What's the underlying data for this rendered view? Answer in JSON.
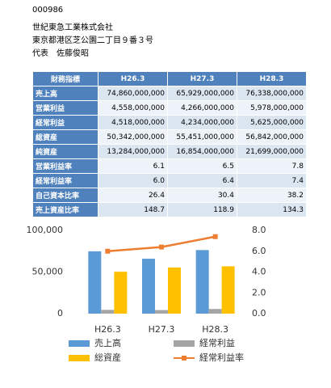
{
  "header": {
    "code": "000986",
    "company": "世紀東急工業株式会社",
    "address": "東京都港区芝公園二丁目９番３号",
    "representative": "代表　佐藤俊昭"
  },
  "table": {
    "header": [
      "財務指標",
      "H26.3",
      "H27.3",
      "H28.3"
    ],
    "rows": [
      [
        "売上高",
        "74,860,000,000",
        "65,929,000,000",
        "76,338,000,000"
      ],
      [
        "営業利益",
        "4,558,000,000",
        "4,266,000,000",
        "5,978,000,000"
      ],
      [
        "経常利益",
        "4,518,000,000",
        "4,234,000,000",
        "5,625,000,000"
      ],
      [
        "総資産",
        "50,342,000,000",
        "55,451,000,000",
        "56,842,000,000"
      ],
      [
        "純資産",
        "13,284,000,000",
        "16,854,000,000",
        "21,699,000,000"
      ],
      [
        "営業利益率",
        "6.1",
        "6.5",
        "7.8"
      ],
      [
        "経常利益率",
        "6.0",
        "6.4",
        "7.4"
      ],
      [
        "自己資本比率",
        "26.4",
        "30.4",
        "38.2"
      ],
      [
        "売上資産比率",
        "148.7",
        "118.9",
        "134.3"
      ]
    ]
  },
  "chart_data": {
    "type": "bar",
    "categories": [
      "H26.3",
      "H27.3",
      "H28.3"
    ],
    "series": [
      {
        "name": "売上高",
        "color": "#5b9bd5",
        "values": [
          74860,
          65929,
          76338
        ]
      },
      {
        "name": "経常利益",
        "color": "#a5a5a5",
        "values": [
          4518,
          4234,
          5625
        ]
      },
      {
        "name": "総資産",
        "color": "#ffc000",
        "values": [
          50342,
          55451,
          56842
        ]
      },
      {
        "name": "経常利益率",
        "color": "#ed7d31",
        "type": "line",
        "axis": "y2",
        "values": [
          6.0,
          6.4,
          7.4
        ]
      }
    ],
    "ylim": [
      0,
      100000
    ],
    "yticks": [
      0,
      {
        "value": 50000,
        "label": "50,000"
      },
      {
        "value": 100000,
        "label": "100,000"
      }
    ],
    "y2lim": [
      0,
      8
    ],
    "y2ticks": [
      {
        "value": 0,
        "label": "0.0"
      },
      {
        "value": 2,
        "label": "2.0"
      },
      {
        "value": 4,
        "label": "4.0"
      },
      {
        "value": 6,
        "label": "6.0"
      },
      {
        "value": 8,
        "label": "8.0"
      }
    ]
  }
}
